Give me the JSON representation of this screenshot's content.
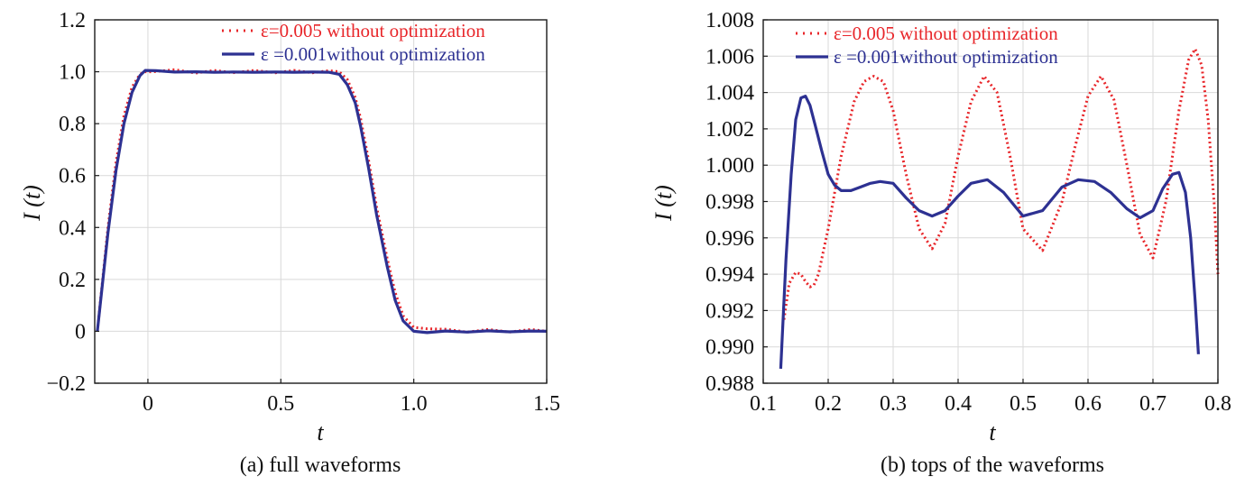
{
  "colors": {
    "series_red": "#e8262a",
    "series_blue": "#2d3192",
    "grid": "#d9d9d9",
    "axis": "#1a1a1a"
  },
  "chart_data": [
    {
      "type": "line",
      "caption": "(a) full waveforms",
      "xlabel": "t",
      "ylabel": "I (t)",
      "xlim": [
        -0.2,
        1.5
      ],
      "ylim": [
        -0.2,
        1.2
      ],
      "xticks": [
        0,
        0.5,
        1.0,
        1.5
      ],
      "xtick_labels": [
        "0",
        "0.5",
        "1.0",
        "1.5"
      ],
      "yticks": [
        -0.2,
        0,
        0.2,
        0.4,
        0.6,
        0.8,
        1.0,
        1.2
      ],
      "ytick_labels": [
        "−0.2",
        "0",
        "0.2",
        "0.4",
        "0.6",
        "0.8",
        "1.0",
        "1.2"
      ],
      "grid": true,
      "legend_position": "top-right",
      "series": [
        {
          "name": "ε=0.005 without optimization",
          "style": "dotted",
          "color": "#e8262a",
          "x": [
            -0.19,
            -0.15,
            -0.12,
            -0.09,
            -0.06,
            -0.03,
            -0.01,
            0.02,
            0.1,
            0.18,
            0.25,
            0.32,
            0.4,
            0.48,
            0.55,
            0.62,
            0.68,
            0.72,
            0.75,
            0.78,
            0.8,
            0.83,
            0.86,
            0.9,
            0.93,
            0.96,
            1.0,
            1.05,
            1.12,
            1.2,
            1.28,
            1.36,
            1.44,
            1.5
          ],
          "y": [
            0.0,
            0.4,
            0.65,
            0.83,
            0.94,
            0.99,
            1.0,
            1.0,
            1.008,
            0.995,
            1.005,
            0.996,
            1.005,
            0.996,
            1.005,
            0.996,
            1.004,
            1.0,
            0.97,
            0.9,
            0.82,
            0.66,
            0.48,
            0.28,
            0.15,
            0.06,
            0.015,
            0.01,
            0.008,
            -0.003,
            0.007,
            -0.003,
            0.007,
            0.0
          ]
        },
        {
          "name": "ε =0.001without optimization",
          "style": "solid",
          "color": "#2d3192",
          "x": [
            -0.19,
            -0.15,
            -0.12,
            -0.09,
            -0.06,
            -0.03,
            -0.01,
            0.03,
            0.1,
            0.18,
            0.25,
            0.32,
            0.4,
            0.48,
            0.55,
            0.62,
            0.68,
            0.72,
            0.75,
            0.78,
            0.8,
            0.83,
            0.86,
            0.9,
            0.93,
            0.96,
            1.0,
            1.05,
            1.12,
            1.2,
            1.28,
            1.36,
            1.44,
            1.5
          ],
          "y": [
            0.0,
            0.38,
            0.62,
            0.8,
            0.92,
            0.985,
            1.005,
            1.004,
            0.999,
            1.0,
            0.998,
            0.999,
            0.998,
            0.999,
            0.998,
            0.999,
            0.998,
            0.99,
            0.95,
            0.88,
            0.79,
            0.63,
            0.45,
            0.25,
            0.12,
            0.04,
            0.0,
            -0.005,
            0.001,
            -0.003,
            0.002,
            -0.002,
            0.001,
            0.0
          ]
        }
      ]
    },
    {
      "type": "line",
      "caption": "(b) tops of the waveforms",
      "xlabel": "t",
      "ylabel": "I (t)",
      "xlim": [
        0.1,
        0.8
      ],
      "ylim": [
        0.988,
        1.008
      ],
      "xticks": [
        0.1,
        0.2,
        0.3,
        0.4,
        0.5,
        0.6,
        0.7,
        0.8
      ],
      "xtick_labels": [
        "0.1",
        "0.2",
        "0.3",
        "0.4",
        "0.5",
        "0.6",
        "0.7",
        "0.8"
      ],
      "yticks": [
        0.988,
        0.99,
        0.992,
        0.994,
        0.996,
        0.998,
        1.0,
        1.002,
        1.004,
        1.006,
        1.008
      ],
      "ytick_labels": [
        "0.988",
        "0.990",
        "0.992",
        "0.994",
        "0.996",
        "0.998",
        "1.000",
        "1.002",
        "1.004",
        "1.006",
        "1.008"
      ],
      "grid": true,
      "legend_position": "top",
      "series": [
        {
          "name": "ε=0.005 without optimization",
          "style": "dotted",
          "color": "#e8262a",
          "x": [
            0.132,
            0.14,
            0.15,
            0.158,
            0.165,
            0.172,
            0.178,
            0.185,
            0.2,
            0.22,
            0.24,
            0.255,
            0.27,
            0.285,
            0.3,
            0.32,
            0.34,
            0.36,
            0.38,
            0.4,
            0.42,
            0.44,
            0.46,
            0.48,
            0.5,
            0.53,
            0.56,
            0.58,
            0.6,
            0.62,
            0.64,
            0.66,
            0.68,
            0.7,
            0.72,
            0.74,
            0.755,
            0.765,
            0.775,
            0.785,
            0.795,
            0.8
          ],
          "y": [
            0.9915,
            0.9935,
            0.9941,
            0.994,
            0.9936,
            0.9933,
            0.9934,
            0.994,
            0.9965,
            1.0005,
            1.0035,
            1.0046,
            1.0049,
            1.0046,
            1.003,
            0.9995,
            0.9965,
            0.9954,
            0.9968,
            1.0005,
            1.0035,
            1.0049,
            1.004,
            1.0005,
            0.9965,
            0.9953,
            0.998,
            1.001,
            1.0038,
            1.0049,
            1.0036,
            1.0,
            0.9962,
            0.9949,
            0.998,
            1.003,
            1.0058,
            1.0064,
            1.0055,
            1.0025,
            0.9975,
            0.994
          ]
        },
        {
          "name": "ε =0.001without optimization",
          "style": "solid",
          "color": "#2d3192",
          "x": [
            0.127,
            0.135,
            0.143,
            0.15,
            0.158,
            0.165,
            0.172,
            0.18,
            0.19,
            0.2,
            0.21,
            0.22,
            0.235,
            0.25,
            0.265,
            0.28,
            0.3,
            0.32,
            0.34,
            0.36,
            0.38,
            0.4,
            0.42,
            0.445,
            0.47,
            0.5,
            0.53,
            0.56,
            0.585,
            0.61,
            0.635,
            0.66,
            0.68,
            0.7,
            0.715,
            0.73,
            0.74,
            0.75,
            0.758,
            0.765,
            0.77
          ],
          "y": [
            0.9888,
            0.9948,
            0.9995,
            1.0025,
            1.0037,
            1.0038,
            1.0033,
            1.0022,
            1.0008,
            0.9995,
            0.9989,
            0.9986,
            0.9986,
            0.9988,
            0.999,
            0.9991,
            0.999,
            0.9982,
            0.9975,
            0.9972,
            0.9975,
            0.9983,
            0.999,
            0.9992,
            0.9985,
            0.9972,
            0.9975,
            0.9988,
            0.9992,
            0.9991,
            0.9985,
            0.9976,
            0.9971,
            0.9975,
            0.9987,
            0.9995,
            0.9996,
            0.9985,
            0.996,
            0.9925,
            0.9896
          ]
        }
      ]
    }
  ]
}
